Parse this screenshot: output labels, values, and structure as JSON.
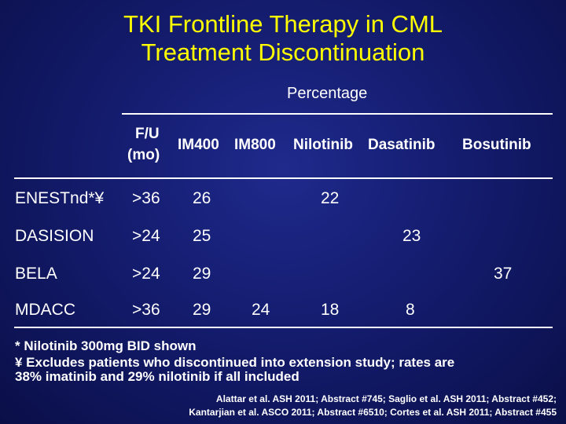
{
  "title_line1": "TKI Frontline Therapy in CML",
  "title_line2": "Treatment Discontinuation",
  "percentage_label": "Percentage",
  "headers": {
    "fu_line1": "F/U",
    "fu_line2": "(mo)",
    "im400": "IM400",
    "im800": "IM800",
    "nilotinib": "Nilotinib",
    "dasatinib": "Dasatinib",
    "bosutinib": "Bosutinib"
  },
  "rows": [
    {
      "study": "ENESTnd*¥",
      "fu": ">36",
      "im400": "26",
      "im800": "",
      "nilotinib": "22",
      "dasatinib": "",
      "bosutinib": ""
    },
    {
      "study": "DASISION",
      "fu": ">24",
      "im400": "25",
      "im800": "",
      "nilotinib": "",
      "dasatinib": "23",
      "bosutinib": ""
    },
    {
      "study": "BELA",
      "fu": ">24",
      "im400": "29",
      "im800": "",
      "nilotinib": "",
      "dasatinib": "",
      "bosutinib": "37"
    },
    {
      "study": "MDACC",
      "fu": ">36",
      "im400": "29",
      "im800": "24",
      "nilotinib": "18",
      "dasatinib": "8",
      "bosutinib": ""
    }
  ],
  "footnotes": {
    "line1": "* Nilotinib 300mg BID shown",
    "line2": "¥ Excludes patients who discontinued into extension study; rates are",
    "line3": "38% imatinib and 29% nilotinib if all included"
  },
  "references": {
    "line1": "Alattar et al. ASH 2011; Abstract #745; Saglio et al. ASH 2011; Abstract #452;",
    "line2": "Kantarjian et al. ASCO 2011; Abstract #6510; Cortes et al. ASH 2011; Abstract #455"
  }
}
